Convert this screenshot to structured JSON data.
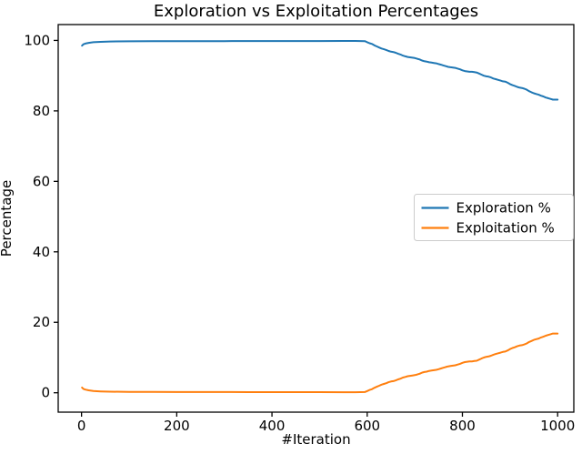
{
  "figure": {
    "background": "#ffffff",
    "text_color": "#000000",
    "spine_color": "#000000",
    "legend_border_color": "#cccccc",
    "legend_background": "#ffffff"
  },
  "chart_data": {
    "type": "line",
    "title": "Exploration vs Exploitation Percentages",
    "xlabel": "#Iteration",
    "ylabel": "Percentage",
    "xlim": [
      -49,
      1034
    ],
    "ylim": [
      -5.5,
      104.5
    ],
    "x_ticks": [
      0,
      200,
      400,
      600,
      800,
      1000
    ],
    "y_ticks": [
      0,
      20,
      40,
      60,
      80,
      100
    ],
    "grid": false,
    "legend": {
      "position": "center right",
      "entries": [
        "Exploration %",
        "Exploitation %"
      ]
    },
    "series": [
      {
        "name": "Exploration %",
        "color": "#1f77b4",
        "points": [
          [
            1,
            98.5
          ],
          [
            4,
            98.9
          ],
          [
            8,
            99.1
          ],
          [
            15,
            99.3
          ],
          [
            25,
            99.5
          ],
          [
            40,
            99.6
          ],
          [
            60,
            99.7
          ],
          [
            100,
            99.75
          ],
          [
            150,
            99.78
          ],
          [
            200,
            99.8
          ],
          [
            250,
            99.8
          ],
          [
            300,
            99.8
          ],
          [
            350,
            99.82
          ],
          [
            400,
            99.82
          ],
          [
            450,
            99.83
          ],
          [
            500,
            99.83
          ],
          [
            550,
            99.84
          ],
          [
            575,
            99.84
          ],
          [
            595,
            99.8
          ],
          [
            600,
            99.5
          ],
          [
            605,
            99.2
          ],
          [
            610,
            99.0
          ],
          [
            615,
            98.6
          ],
          [
            620,
            98.3
          ],
          [
            625,
            98.0
          ],
          [
            630,
            97.7
          ],
          [
            635,
            97.5
          ],
          [
            640,
            97.3
          ],
          [
            645,
            97.0
          ],
          [
            650,
            96.8
          ],
          [
            655,
            96.7
          ],
          [
            660,
            96.5
          ],
          [
            665,
            96.2
          ],
          [
            670,
            96.0
          ],
          [
            675,
            95.7
          ],
          [
            680,
            95.5
          ],
          [
            685,
            95.3
          ],
          [
            690,
            95.2
          ],
          [
            695,
            95.1
          ],
          [
            700,
            95.0
          ],
          [
            705,
            94.8
          ],
          [
            710,
            94.6
          ],
          [
            715,
            94.3
          ],
          [
            720,
            94.1
          ],
          [
            725,
            94.0
          ],
          [
            730,
            93.8
          ],
          [
            735,
            93.7
          ],
          [
            740,
            93.6
          ],
          [
            745,
            93.5
          ],
          [
            750,
            93.3
          ],
          [
            755,
            93.1
          ],
          [
            760,
            92.9
          ],
          [
            765,
            92.7
          ],
          [
            770,
            92.5
          ],
          [
            775,
            92.4
          ],
          [
            780,
            92.3
          ],
          [
            785,
            92.2
          ],
          [
            790,
            92.0
          ],
          [
            795,
            91.8
          ],
          [
            800,
            91.5
          ],
          [
            805,
            91.3
          ],
          [
            810,
            91.2
          ],
          [
            815,
            91.1
          ],
          [
            820,
            91.1
          ],
          [
            825,
            91.0
          ],
          [
            830,
            90.9
          ],
          [
            835,
            90.6
          ],
          [
            840,
            90.3
          ],
          [
            845,
            90.0
          ],
          [
            850,
            89.8
          ],
          [
            855,
            89.7
          ],
          [
            860,
            89.5
          ],
          [
            865,
            89.2
          ],
          [
            870,
            89.0
          ],
          [
            875,
            88.8
          ],
          [
            880,
            88.6
          ],
          [
            885,
            88.4
          ],
          [
            890,
            88.3
          ],
          [
            895,
            88.0
          ],
          [
            900,
            87.6
          ],
          [
            905,
            87.3
          ],
          [
            910,
            87.1
          ],
          [
            915,
            86.8
          ],
          [
            920,
            86.6
          ],
          [
            925,
            86.5
          ],
          [
            930,
            86.3
          ],
          [
            935,
            86.0
          ],
          [
            940,
            85.6
          ],
          [
            945,
            85.3
          ],
          [
            950,
            85.0
          ],
          [
            955,
            84.8
          ],
          [
            960,
            84.6
          ],
          [
            965,
            84.3
          ],
          [
            970,
            84.1
          ],
          [
            975,
            83.8
          ],
          [
            980,
            83.6
          ],
          [
            985,
            83.4
          ],
          [
            990,
            83.2
          ],
          [
            1000,
            83.2
          ]
        ]
      },
      {
        "name": "Exploitation %",
        "color": "#ff7f0e",
        "points": [
          [
            1,
            1.5
          ],
          [
            4,
            1.1
          ],
          [
            8,
            0.9
          ],
          [
            15,
            0.7
          ],
          [
            25,
            0.5
          ],
          [
            40,
            0.4
          ],
          [
            60,
            0.3
          ],
          [
            100,
            0.25
          ],
          [
            150,
            0.22
          ],
          [
            200,
            0.2
          ],
          [
            250,
            0.2
          ],
          [
            300,
            0.2
          ],
          [
            350,
            0.18
          ],
          [
            400,
            0.18
          ],
          [
            450,
            0.17
          ],
          [
            500,
            0.17
          ],
          [
            550,
            0.16
          ],
          [
            575,
            0.16
          ],
          [
            595,
            0.2
          ],
          [
            600,
            0.5
          ],
          [
            605,
            0.8
          ],
          [
            610,
            1.0
          ],
          [
            615,
            1.4
          ],
          [
            620,
            1.7
          ],
          [
            625,
            2.0
          ],
          [
            630,
            2.3
          ],
          [
            635,
            2.5
          ],
          [
            640,
            2.7
          ],
          [
            645,
            3.0
          ],
          [
            650,
            3.2
          ],
          [
            655,
            3.3
          ],
          [
            660,
            3.5
          ],
          [
            665,
            3.8
          ],
          [
            670,
            4.0
          ],
          [
            675,
            4.3
          ],
          [
            680,
            4.5
          ],
          [
            685,
            4.7
          ],
          [
            690,
            4.8
          ],
          [
            695,
            4.9
          ],
          [
            700,
            5.0
          ],
          [
            705,
            5.2
          ],
          [
            710,
            5.4
          ],
          [
            715,
            5.7
          ],
          [
            720,
            5.9
          ],
          [
            725,
            6.0
          ],
          [
            730,
            6.2
          ],
          [
            735,
            6.3
          ],
          [
            740,
            6.4
          ],
          [
            745,
            6.5
          ],
          [
            750,
            6.7
          ],
          [
            755,
            6.9
          ],
          [
            760,
            7.1
          ],
          [
            765,
            7.3
          ],
          [
            770,
            7.5
          ],
          [
            775,
            7.6
          ],
          [
            780,
            7.7
          ],
          [
            785,
            7.8
          ],
          [
            790,
            8.0
          ],
          [
            795,
            8.2
          ],
          [
            800,
            8.5
          ],
          [
            805,
            8.7
          ],
          [
            810,
            8.8
          ],
          [
            815,
            8.9
          ],
          [
            820,
            8.9
          ],
          [
            825,
            9.0
          ],
          [
            830,
            9.1
          ],
          [
            835,
            9.4
          ],
          [
            840,
            9.7
          ],
          [
            845,
            10.0
          ],
          [
            850,
            10.2
          ],
          [
            855,
            10.3
          ],
          [
            860,
            10.5
          ],
          [
            865,
            10.8
          ],
          [
            870,
            11.0
          ],
          [
            875,
            11.2
          ],
          [
            880,
            11.4
          ],
          [
            885,
            11.6
          ],
          [
            890,
            11.7
          ],
          [
            895,
            12.0
          ],
          [
            900,
            12.4
          ],
          [
            905,
            12.7
          ],
          [
            910,
            12.9
          ],
          [
            915,
            13.2
          ],
          [
            920,
            13.4
          ],
          [
            925,
            13.5
          ],
          [
            930,
            13.7
          ],
          [
            935,
            14.0
          ],
          [
            940,
            14.4
          ],
          [
            945,
            14.7
          ],
          [
            950,
            15.0
          ],
          [
            955,
            15.2
          ],
          [
            960,
            15.4
          ],
          [
            965,
            15.7
          ],
          [
            970,
            15.9
          ],
          [
            975,
            16.2
          ],
          [
            980,
            16.4
          ],
          [
            985,
            16.6
          ],
          [
            990,
            16.8
          ],
          [
            1000,
            16.8
          ]
        ]
      }
    ]
  }
}
